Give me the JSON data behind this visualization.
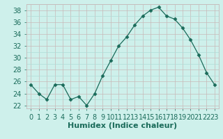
{
  "x": [
    0,
    1,
    2,
    3,
    4,
    5,
    6,
    7,
    8,
    9,
    10,
    11,
    12,
    13,
    14,
    15,
    16,
    17,
    18,
    19,
    20,
    21,
    22,
    23
  ],
  "y": [
    25.5,
    24.0,
    23.0,
    25.5,
    25.5,
    23.0,
    23.5,
    22.0,
    24.0,
    27.0,
    29.5,
    32.0,
    33.5,
    35.5,
    37.0,
    38.0,
    38.5,
    37.0,
    36.5,
    35.0,
    33.0,
    30.5,
    27.5,
    25.5
  ],
  "xlabel": "Humidex (Indice chaleur)",
  "line_color": "#1a6b5a",
  "marker": "D",
  "marker_size": 2.5,
  "bg_color": "#cef0eb",
  "grid_color": "#aedbd6",
  "grid_color_major": "#c8b8b8",
  "ylim": [
    21.5,
    39
  ],
  "xlim": [
    -0.5,
    23.5
  ],
  "yticks": [
    22,
    24,
    26,
    28,
    30,
    32,
    34,
    36,
    38
  ],
  "tick_color": "#1a6b5a",
  "xlabel_fontsize": 8,
  "tick_fontsize": 7
}
